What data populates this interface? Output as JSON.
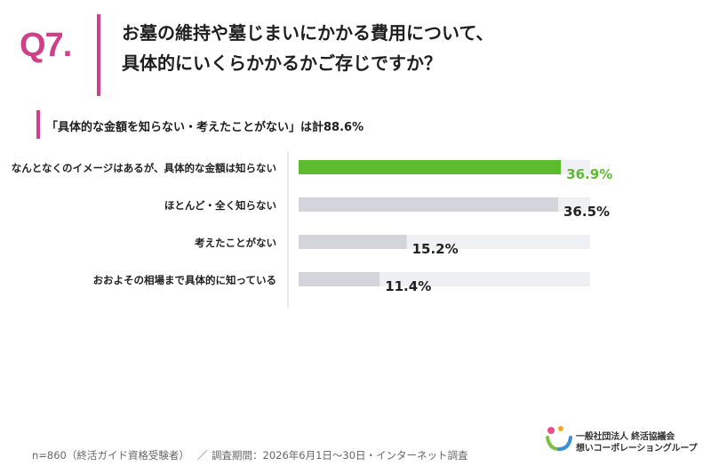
{
  "header": {
    "q_label": "Q7.",
    "title_line1": "お墓の維持や墓じまいにかかる費用について、",
    "title_line2": "具体的にいくらかかるかご存じですか？",
    "subtitle": "「具体的な金額を知らない・考えたことがない」は計88.6%"
  },
  "chart_data": {
    "type": "bar",
    "orientation": "horizontal",
    "categories": [
      "なんとなくのイメージはあるが、具体的な金額は知らない",
      "ほとんど・全く知らない",
      "考えたことがない",
      "おおよその相場まで具体的に知っている"
    ],
    "values": [
      36.9,
      36.5,
      15.2,
      11.4
    ],
    "value_labels": [
      "36.9%",
      "36.5%",
      "15.2%",
      "11.4%"
    ],
    "highlight_index": 0,
    "xlim": [
      0,
      50
    ],
    "title": "",
    "xlabel": "",
    "ylabel": "",
    "grid": false,
    "colors": {
      "highlight": "#5dbb2f",
      "bar": "#d2d5da",
      "track": "#eef0f3",
      "highlight_label": "#5dbb2f",
      "label": "#222222"
    }
  },
  "footer": {
    "sample": "n=860（終活ガイド資格受験者）",
    "separator": "／",
    "survey_period": "調査期間：2026年6月1日〜30日・インターネット調査"
  },
  "logo": {
    "org_line1": "一般社団法人 終活協議会",
    "org_line2": "想いコーポレーショングループ",
    "mark_colors": [
      "#e94e8a",
      "#f5a623",
      "#7ac143",
      "#3b8fd6"
    ]
  }
}
